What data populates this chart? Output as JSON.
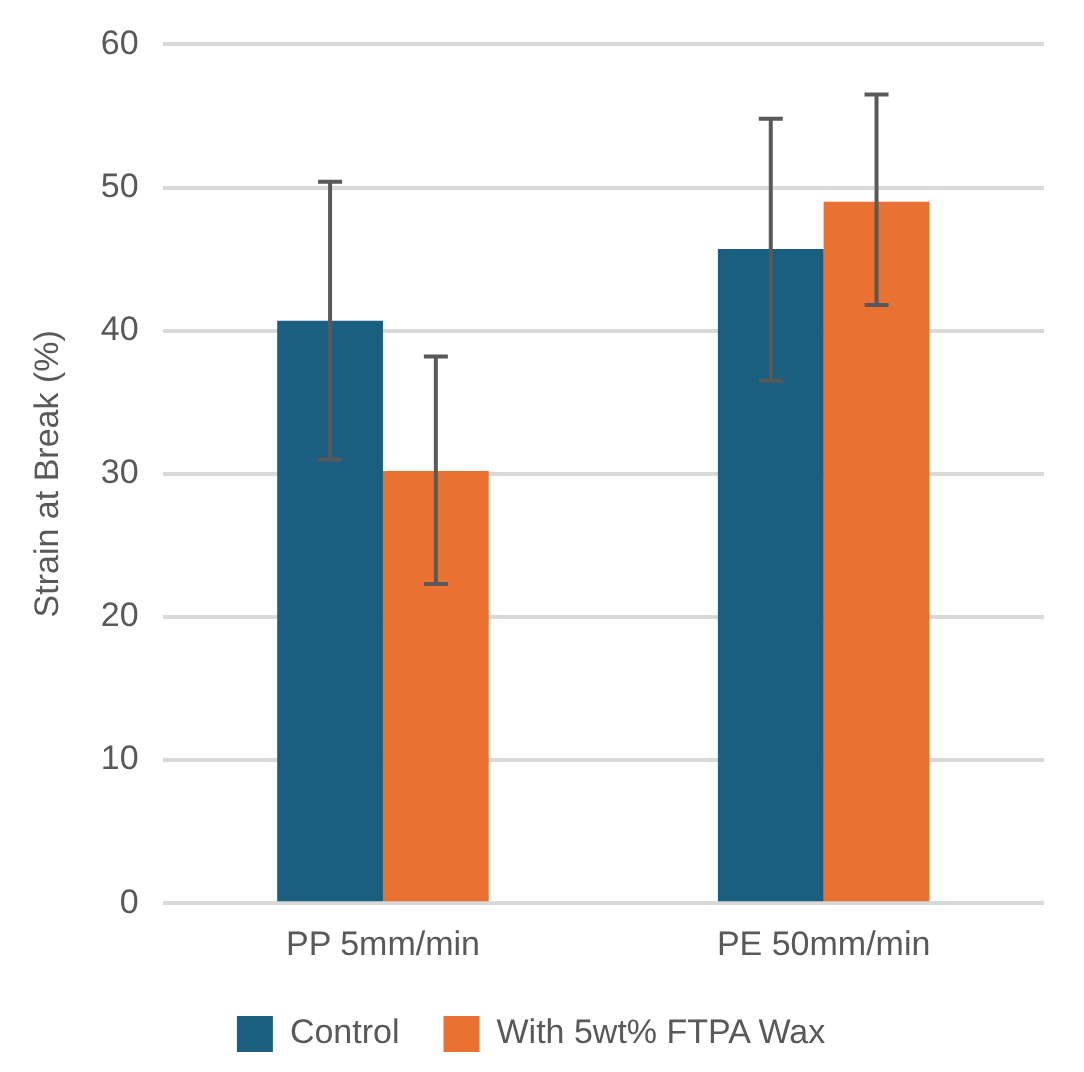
{
  "chart_data": {
    "type": "bar",
    "ylabel": "Strain at Break (%)",
    "categories": [
      "PP 5mm/min",
      "PE 50mm/min"
    ],
    "series": [
      {
        "name": "Control",
        "color": "#1a5e80",
        "values": [
          40.7,
          45.7
        ],
        "errors": [
          [
            31.0,
            50.4
          ],
          [
            36.5,
            54.8
          ]
        ]
      },
      {
        "name": "With 5wt% FTPA Wax",
        "color": "#e97132",
        "values": [
          30.2,
          49.0
        ],
        "errors": [
          [
            22.3,
            38.2
          ],
          [
            41.8,
            56.5
          ]
        ]
      }
    ],
    "ylim": [
      0,
      60
    ],
    "yticks": [
      0,
      10,
      20,
      30,
      40,
      50,
      60
    ],
    "grid": "y",
    "legend": "bottom"
  }
}
